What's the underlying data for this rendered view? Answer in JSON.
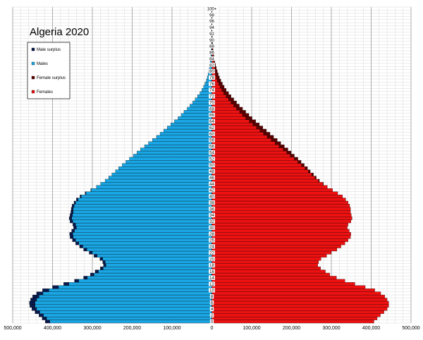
{
  "chart_data": {
    "type": "bar",
    "orientation": "horizontal",
    "title": "Algeria 2020",
    "legend_position": "top-left",
    "grid": true,
    "xlim": [
      -500000,
      500000
    ],
    "x_ticks": [
      -500000,
      -400000,
      -300000,
      -200000,
      -100000,
      0,
      100000,
      200000,
      300000,
      400000,
      500000
    ],
    "x_tick_labels": [
      "500,000",
      "400,000",
      "300,000",
      "200,000",
      "100,000",
      "0",
      "100,000",
      "200,000",
      "300,000",
      "400,000",
      "500,000"
    ],
    "age_axis_labels": [
      "0",
      "2",
      "4",
      "6",
      "8",
      "10",
      "12",
      "14",
      "16",
      "18",
      "20",
      "22",
      "24",
      "26",
      "28",
      "30",
      "32",
      "34",
      "36",
      "38",
      "40",
      "42",
      "44",
      "46",
      "48",
      "50",
      "52",
      "54",
      "56",
      "58",
      "60",
      "62",
      "64",
      "66",
      "68",
      "70",
      "72",
      "74",
      "76",
      "78",
      "80",
      "82",
      "84",
      "86",
      "88",
      "90",
      "92",
      "94",
      "96",
      "98",
      "100+"
    ],
    "legend": [
      {
        "name": "Male surplus",
        "color": "#0a1a4e"
      },
      {
        "name": "Males",
        "color": "#1aa6e4"
      },
      {
        "name": "Female surplus",
        "color": "#5c0000"
      },
      {
        "name": "Females",
        "color": "#ee1111"
      }
    ],
    "ages": [
      0,
      1,
      2,
      3,
      4,
      5,
      6,
      7,
      8,
      9,
      10,
      11,
      12,
      13,
      14,
      15,
      16,
      17,
      18,
      19,
      20,
      21,
      22,
      23,
      24,
      25,
      26,
      27,
      28,
      29,
      30,
      31,
      32,
      33,
      34,
      35,
      36,
      37,
      38,
      39,
      40,
      41,
      42,
      43,
      44,
      45,
      46,
      47,
      48,
      49,
      50,
      51,
      52,
      53,
      54,
      55,
      56,
      57,
      58,
      59,
      60,
      61,
      62,
      63,
      64,
      65,
      66,
      67,
      68,
      69,
      70,
      71,
      72,
      73,
      74,
      75,
      76,
      77,
      78,
      79,
      80,
      81,
      82,
      83,
      84,
      85,
      86,
      87,
      88,
      89,
      90,
      91,
      92,
      93,
      94,
      95,
      96,
      97,
      98,
      99,
      100
    ],
    "males": [
      418000,
      426000,
      434000,
      444000,
      452000,
      457000,
      458000,
      455000,
      450000,
      440000,
      425000,
      400000,
      372000,
      345000,
      322000,
      305000,
      293000,
      280000,
      272000,
      274000,
      281000,
      296000,
      308000,
      322000,
      332000,
      342000,
      350000,
      356000,
      357000,
      352000,
      347000,
      349000,
      356000,
      358000,
      356000,
      354000,
      353000,
      351000,
      346000,
      340000,
      331000,
      318000,
      304000,
      290000,
      279000,
      268000,
      259000,
      251000,
      242000,
      234000,
      225000,
      216000,
      207000,
      197000,
      188000,
      179000,
      169000,
      159000,
      149000,
      139000,
      130000,
      121000,
      112000,
      103000,
      94000,
      85000,
      77000,
      70000,
      62000,
      55000,
      48000,
      42000,
      36000,
      30000,
      25000,
      21000,
      17500,
      14000,
      11500,
      9500,
      8000,
      6500,
      5300,
      4300,
      3400,
      2700,
      2100,
      1600,
      1200,
      900,
      650,
      470,
      330,
      230,
      150,
      100,
      65,
      40,
      25,
      15,
      10
    ],
    "females": [
      407000,
      415000,
      423000,
      432000,
      440000,
      444000,
      444000,
      440000,
      434000,
      424000,
      409000,
      385000,
      359000,
      334000,
      313000,
      296000,
      285000,
      273000,
      266000,
      268000,
      274000,
      288000,
      300000,
      314000,
      324000,
      334000,
      342000,
      348000,
      349000,
      345000,
      340000,
      342000,
      349000,
      352000,
      350000,
      348000,
      348000,
      346000,
      342000,
      336000,
      328000,
      316000,
      303000,
      290000,
      280000,
      270000,
      262000,
      255000,
      247000,
      240000,
      232000,
      224000,
      216000,
      207000,
      199000,
      191000,
      182000,
      173000,
      164000,
      155000,
      146000,
      137000,
      128000,
      119000,
      110000,
      101000,
      93000,
      85000,
      77000,
      69000,
      62000,
      55000,
      48000,
      42000,
      36000,
      31000,
      26500,
      22500,
      19000,
      16000,
      13500,
      11300,
      9400,
      7700,
      6300,
      5100,
      4100,
      3200,
      2500,
      1900,
      1400,
      1000,
      720,
      500,
      340,
      220,
      140,
      90,
      55,
      32,
      18
    ]
  }
}
